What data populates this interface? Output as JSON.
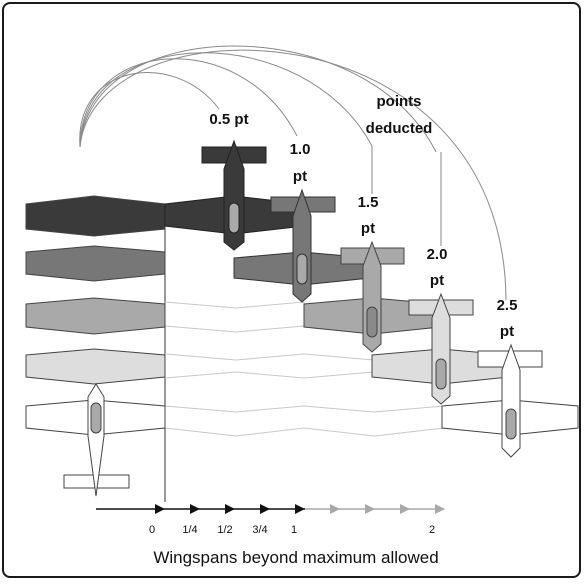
{
  "labels": {
    "deduction_0": "0.5 pt",
    "deduction_1_line1": "1.0",
    "deduction_1_line2": "pt",
    "deduction_2_line1": "1.5",
    "deduction_2_line2": "pt",
    "deduction_3_line1": "2.0",
    "deduction_3_line2": "pt",
    "deduction_4_line1": "2.5",
    "deduction_4_line2": "pt",
    "points_line1": "points",
    "points_line2": "deducted"
  },
  "axis": {
    "ticks": [
      "0",
      "1/4",
      "1/2",
      "3/4",
      "1",
      "2"
    ],
    "caption": "Wingspans beyond maximum allowed"
  },
  "colors": {
    "shade_1": "#3a3a3a",
    "shade_2": "#777777",
    "shade_3": "#a9a9a9",
    "shade_4": "#dddddd",
    "shade_5": "#ffffff",
    "outline": "#444444",
    "arc": "#8a8a8a",
    "arrow_dark": "#111111",
    "arrow_light": "#a8a8a8"
  }
}
